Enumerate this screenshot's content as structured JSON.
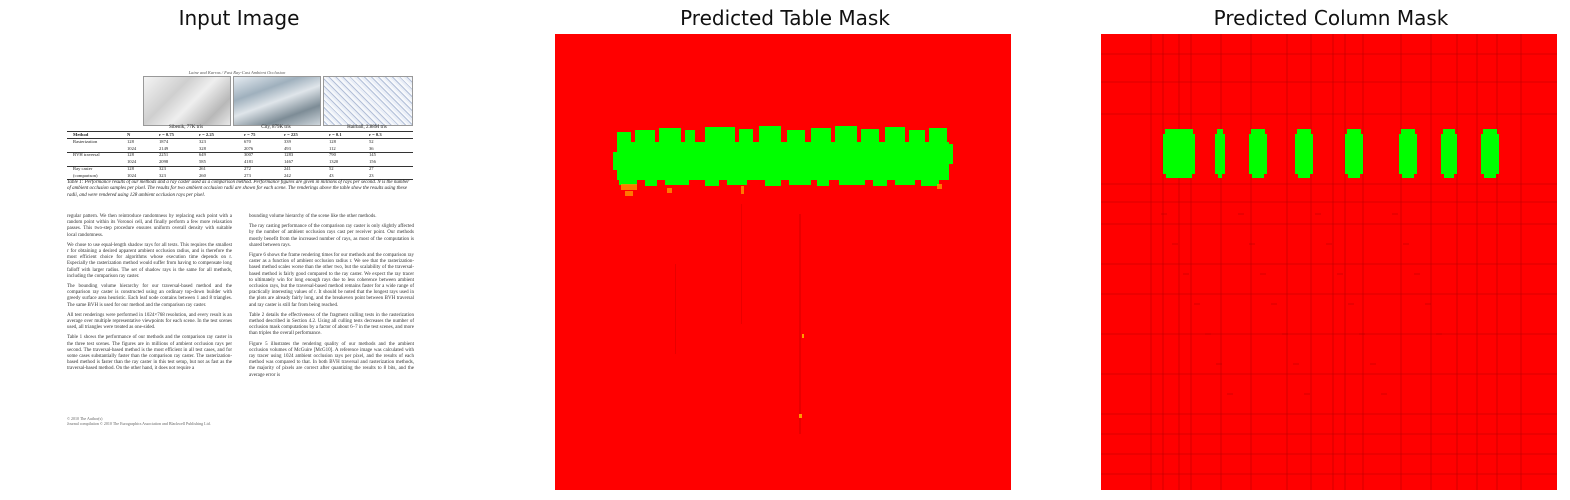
{
  "titles": {
    "input": "Input Image",
    "table_mask": "Predicted Table Mask",
    "column_mask": "Predicted Column Mask"
  },
  "colors": {
    "mask_background": "#ff0000",
    "mask_foreground": "#00ff00",
    "column_lines": "#a00000"
  },
  "document": {
    "running_header": "Laine and Karras / Fast Ray-Cast Ambient Occlusion",
    "render_captions": [
      "Sibenik, 77K tris",
      "City, 879K tris",
      "Hairball, 2.88M tris"
    ],
    "table": {
      "header": [
        "Method",
        "N",
        "r = 0.75",
        "r = 2.25",
        "r = 75",
        "r = 225",
        "r = 0.1",
        "r = 0.3"
      ],
      "rows": [
        [
          "Rasterization",
          "128",
          "1874",
          "323",
          "670",
          "339",
          "128",
          "52"
        ],
        [
          "",
          "1024",
          "2149",
          "328",
          "2076",
          "493",
          "112",
          "36"
        ],
        [
          "BVH traversal",
          "128",
          "2251",
          "649",
          "3007",
          "1283",
          "790",
          "145"
        ],
        [
          "",
          "1024",
          "2098",
          "585",
          "4181",
          "1467",
          "1320",
          "156"
        ],
        [
          "Ray caster",
          "128",
          "323",
          "261",
          "272",
          "241",
          "52",
          "27"
        ],
        [
          "(comparison)",
          "1024",
          "323",
          "260",
          "273",
          "242",
          "43",
          "23"
        ]
      ]
    },
    "caption": "Table 1: Performance results of our methods and a ray caster used as a comparison method. Performance figures are given in millions of rays per second. N is the number of ambient occlusion samples per pixel. The results for two ambient occlusion radii are shown for each scene. The renderings above the table show the results using these radii, and were rendered using 128 ambient occlusion rays per pixel.",
    "col1": [
      "regular pattern. We then reintroduce randomness by replacing each point with a random point within its Voronoi cell, and finally perform a few more relaxation passes. This two-step procedure ensures uniform overall density with suitable local randomness.",
      "We chose to use equal-length shadow rays for all texts. This requires the smallest r for obtaining a desired apparent ambient occlusion radius, and is therefore the most efficient choice for algorithms whose execution time depends on r. Especially the rasterization method would suffer from having to compensate long falloff with larger radius. The set of shadow rays is the same for all methods, including the comparison ray caster.",
      "The bounding volume hierarchy for our traversal-based method and the comparison ray caster is constructed using an ordinary top-down builder with greedy surface area heuristic. Each leaf node contains between 1 and 8 triangles. The same BVH is used for our method and the comparison ray caster.",
      "All test renderings were performed in 1024×768 resolution, and every result is an average over multiple representative viewpoints for each scene. In the test scenes used, all triangles were treated as one-sided.",
      "Table 1 shows the performance of our methods and the comparison ray caster in the three test scenes. The figures are in millions of ambient occlusion rays per second. The traversal-based method is the most efficient in all test cases, and for some cases substantially faster than the comparison ray caster. The rasterization-based method is faster than the ray caster in this test setup, but not as fast as the traversal-based method. On the other hand, it does not require a"
    ],
    "col2": [
      "bounding volume hierarchy of the scene like the other methods.",
      "The ray casting performance of the comparison ray caster is only slightly affected by the number of ambient occlusion rays cast per receiver point. Our methods mostly benefit from the increased number of rays, as most of the computation is shared between rays.",
      "Figure 6 shows the frame rendering times for our methods and the comparison ray caster as a function of ambient occlusion radius r. We see that the rasterization-based method scales worse than the other two, but the scalability of the traversal-based method is fairly good compared to the ray caster. We expect the ray tracer to ultimately win for long enough rays due to less coherence between ambient occlusion rays, but the traversal-based method remains faster for a wide range of practically interesting values of r. It should be noted that the longest rays used in the plots are already fairly long, and the breakeven point between BVH traversal and ray caster is still far from being reached.",
      "Table 2 details the effectiveness of the fragment culling tests in the rasterization method described in Section 4.2. Using all culling tests decreases the number of occlusion mask computations by a factor of about 6–7 in the test scenes, and more than triples the overall performance.",
      "Figure 5 illustrates the rendering quality of our methods and the ambient occlusion volumes of McGuire [McG10]. A reference image was calculated with ray tracer using 1024 ambient occlusion rays per pixel, and the results of each method was compared to that. In both BVH traversal and rasterization methods, the majority of pixels are correct after quantizing the results to 8 bits, and the average error is"
    ],
    "footer": [
      "© 2010 The Author(s)",
      "Journal compilation © 2010 The Eurographics Association and Blackwell Publishing Ltd."
    ]
  }
}
